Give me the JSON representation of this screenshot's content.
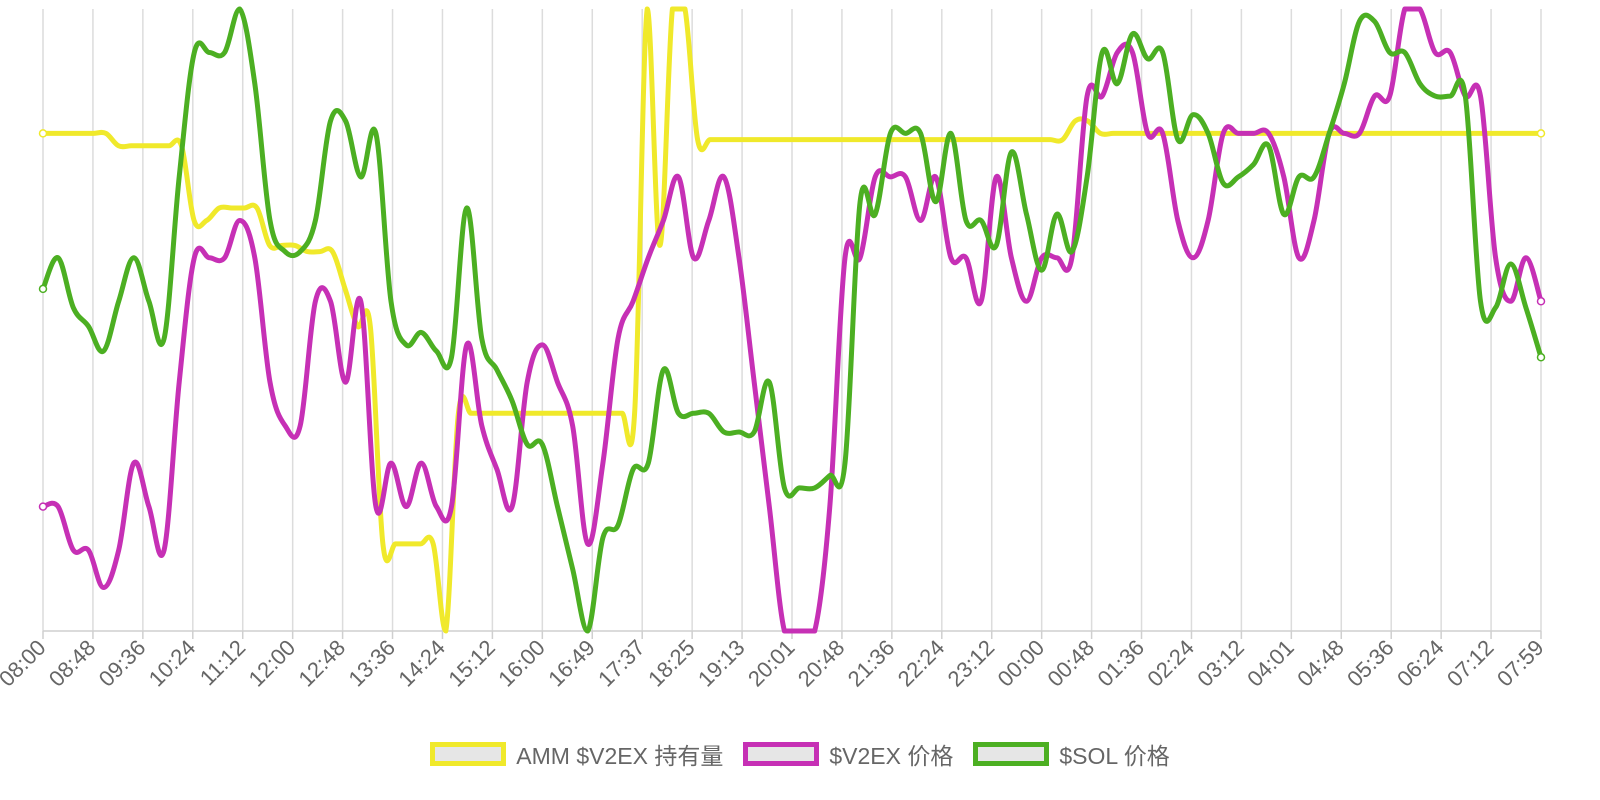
{
  "chart_data": {
    "type": "line",
    "x_tick_labels": [
      "08:00",
      "08:48",
      "09:36",
      "10:24",
      "11:12",
      "12:00",
      "12:48",
      "13:36",
      "14:24",
      "15:12",
      "16:00",
      "16:49",
      "17:37",
      "18:25",
      "19:13",
      "20:01",
      "20:48",
      "21:36",
      "22:24",
      "23:12",
      "00:00",
      "00:48",
      "01:36",
      "02:24",
      "03:12",
      "04:01",
      "04:48",
      "05:36",
      "06:24",
      "07:12",
      "07:59"
    ],
    "ylim": [
      0,
      100
    ],
    "grid": {
      "vertical": true,
      "horizontal": false
    },
    "legend_position": "bottom",
    "series": [
      {
        "name": "AMM $V2EX 持有量",
        "color": "#f0e92b",
        "values": [
          80,
          80,
          80,
          80,
          80,
          80,
          78,
          78,
          78,
          78,
          78,
          78,
          66,
          66,
          68,
          68,
          68,
          68,
          62,
          62,
          62,
          61,
          61,
          61,
          55,
          49,
          49,
          14,
          14,
          14,
          14,
          14,
          0,
          35,
          35,
          35,
          35,
          35,
          35,
          35,
          35,
          35,
          35,
          35,
          35,
          35,
          35,
          35,
          100,
          62,
          100,
          100,
          79,
          79,
          79,
          79,
          79,
          79,
          79,
          79,
          79,
          79,
          79,
          79,
          79,
          79,
          79,
          79,
          79,
          79,
          79,
          79,
          79,
          79,
          79,
          79,
          79,
          79,
          79,
          79,
          79,
          79,
          82,
          82,
          80,
          80,
          80,
          80,
          80,
          80,
          80,
          80,
          80,
          80,
          80,
          80,
          80,
          80,
          80,
          80,
          80,
          80,
          80,
          80,
          80,
          80,
          80,
          80,
          80,
          80,
          80,
          80,
          80,
          80,
          80,
          80,
          80,
          80,
          80,
          80
        ]
      },
      {
        "name": "$V2EX 价格",
        "color": "#c630b5",
        "values": [
          20,
          20,
          13,
          13,
          7,
          13,
          27,
          20,
          13,
          40,
          60,
          60,
          60,
          66,
          60,
          40,
          33,
          33,
          53,
          53,
          40,
          53,
          20,
          27,
          20,
          27,
          20,
          20,
          46,
          33,
          26,
          20,
          40,
          46,
          40,
          33,
          14,
          27,
          47,
          53,
          60,
          66,
          73,
          60,
          66,
          73,
          60,
          40,
          20,
          0,
          0,
          0,
          20,
          60,
          60,
          73,
          73,
          73,
          66,
          73,
          60,
          60,
          53,
          73,
          60,
          53,
          60,
          60,
          60,
          86,
          86,
          93,
          93,
          80,
          80,
          66,
          60,
          66,
          80,
          80,
          80,
          80,
          73,
          60,
          66,
          80,
          80,
          80,
          86,
          86,
          100,
          100,
          93,
          93,
          86,
          86,
          60,
          53,
          60,
          53
        ]
      },
      {
        "name": "$SOL 价格",
        "color": "#4caf22",
        "values": [
          55,
          60,
          52,
          49,
          45,
          53,
          60,
          53,
          47,
          73,
          93,
          93,
          93,
          100,
          88,
          66,
          61,
          61,
          66,
          82,
          82,
          73,
          80,
          53,
          46,
          48,
          45,
          44,
          68,
          47,
          42,
          37,
          30,
          30,
          20,
          10,
          0,
          15,
          17,
          26,
          27,
          42,
          35,
          35,
          35,
          32,
          32,
          32,
          40,
          23,
          23,
          23,
          25,
          27,
          69,
          67,
          80,
          80,
          80,
          69,
          80,
          66,
          66,
          62,
          77,
          67,
          58,
          67,
          61,
          73,
          93,
          88,
          96,
          92,
          93,
          79,
          83,
          80,
          72,
          73,
          75,
          78,
          67,
          73,
          73,
          80,
          88,
          98,
          98,
          93,
          93,
          88,
          86,
          86,
          86,
          53,
          52,
          59,
          52,
          44
        ]
      }
    ]
  }
}
